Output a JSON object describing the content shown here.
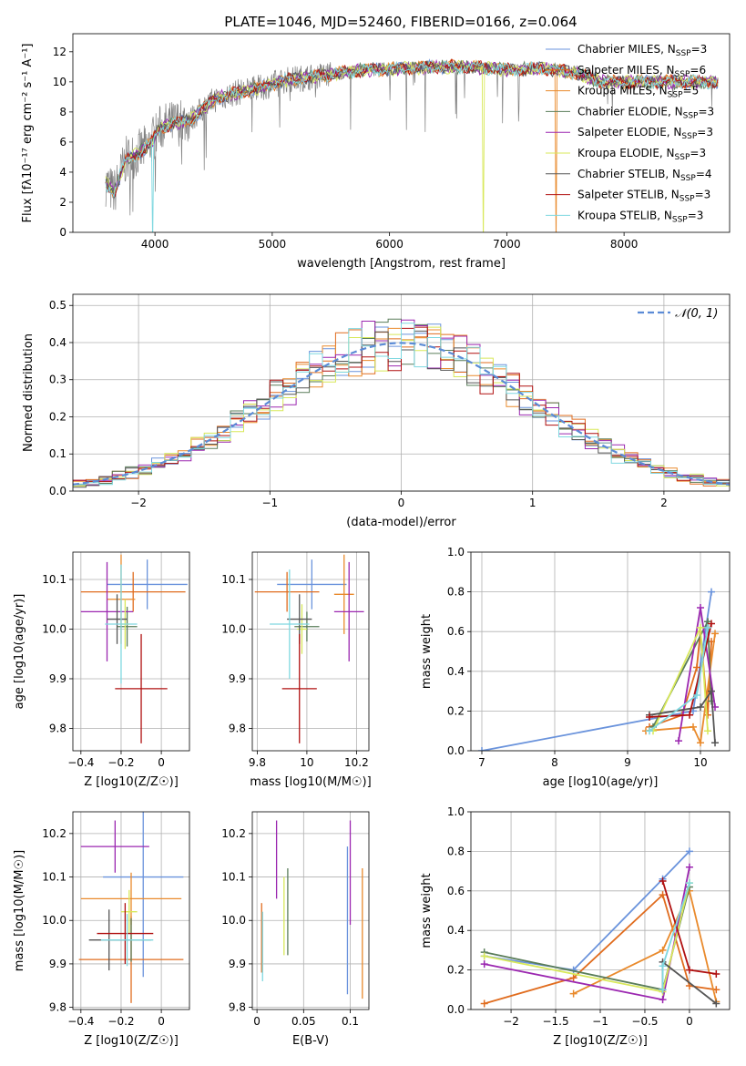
{
  "figure": {
    "title": "PLATE=1046, MJD=52460, FIBERID=0166, z=0.064"
  },
  "colors": {
    "Chabrier MILES": "#6a93dc",
    "Salpeter MILES": "#e06c1e",
    "Kroupa MILES": "#e98a2c",
    "Chabrier ELODIE": "#5a7d5a",
    "Salpeter ELODIE": "#9b27b0",
    "Kroupa ELODIE": "#d8e85a",
    "Chabrier STELIB": "#555555",
    "Salpeter STELIB": "#b01010",
    "Kroupa STELIB": "#7fd8e0",
    "data": "#808080",
    "normal": "#5b8bd6",
    "grid": "#b0b0b0"
  },
  "chart_data": [
    {
      "type": "line",
      "id": "spectrum",
      "title": "PLATE=1046, MJD=52460, FIBERID=0166, z=0.064",
      "xlabel": "wavelength [Angstrom, rest frame]",
      "ylabel": "Flux [fλ10⁻¹⁷ erg cm⁻² s⁻¹ A⁻¹]",
      "xlim": [
        3300,
        8900
      ],
      "ylim": [
        0,
        13.2
      ],
      "xticks": [
        4000,
        5000,
        6000,
        7000,
        8000
      ],
      "yticks": [
        0,
        2,
        4,
        6,
        8,
        10,
        12
      ],
      "grid": false,
      "legend_position": "right",
      "legend": [
        "Chabrier MILES, N_SSP=3",
        "Salpeter MILES, N_SSP=6",
        "Kroupa MILES, N_SSP=5",
        "Chabrier ELODIE, N_SSP=3",
        "Salpeter ELODIE, N_SSP=3",
        "Kroupa ELODIE, N_SSP=3",
        "Chabrier STELIB, N_SSP=4",
        "Salpeter STELIB, N_SSP=3",
        "Kroupa STELIB, N_SSP=3"
      ],
      "legend_labels": [
        {
          "name": "Chabrier MILES",
          "sub": "SSP",
          "n": "3"
        },
        {
          "name": "Salpeter MILES",
          "sub": "SSP",
          "n": "6"
        },
        {
          "name": "Kroupa MILES",
          "sub": "SSP",
          "n": "5"
        },
        {
          "name": "Chabrier ELODIE",
          "sub": "SSP",
          "n": "3"
        },
        {
          "name": "Salpeter ELODIE",
          "sub": "SSP",
          "n": "3"
        },
        {
          "name": "Kroupa ELODIE",
          "sub": "SSP",
          "n": "3"
        },
        {
          "name": "Chabrier STELIB",
          "sub": "SSP",
          "n": "4"
        },
        {
          "name": "Salpeter STELIB",
          "sub": "SSP",
          "n": "3"
        },
        {
          "name": "Kroupa STELIB",
          "sub": "SSP",
          "n": "3"
        }
      ],
      "continuum": {
        "x": [
          3580,
          3650,
          3750,
          3850,
          3950,
          4050,
          4150,
          4300,
          4500,
          4700,
          4900,
          5100,
          5300,
          5500,
          5800,
          6100,
          6400,
          6700,
          7000,
          7300,
          7600,
          7800
        ],
        "y": [
          3.3,
          2.6,
          4.8,
          5.2,
          5.8,
          7.0,
          7.2,
          7.5,
          8.8,
          9.3,
          9.6,
          10.1,
          10.3,
          10.5,
          10.8,
          10.9,
          11.0,
          11.0,
          10.8,
          10.9,
          10.6,
          10.0
        ]
      },
      "data_range": [
        3580,
        8800
      ],
      "model_drop_wavelength": {
        "Kroupa STELIB": 3980,
        "Kroupa MILES": 7420,
        "Kroupa ELODIE": 6800
      }
    },
    {
      "type": "histogram",
      "id": "residuals",
      "xlabel": "(data-model)/error",
      "ylabel": "Normed distribution",
      "xlim": [
        -2.5,
        2.5
      ],
      "ylim": [
        0,
        0.53
      ],
      "xticks": [
        -2,
        -1,
        0,
        1,
        2
      ],
      "yticks": [
        0.0,
        0.1,
        0.2,
        0.3,
        0.4,
        0.5
      ],
      "grid": true,
      "legend": [
        "𝒩(0, 1)"
      ],
      "legend_position": "top-right",
      "bin_width": 0.1,
      "reference_curve": {
        "name": "N(0,1)",
        "mean": 0.0,
        "sigma": 1.0
      }
    },
    {
      "type": "scatter",
      "id": "age_vs_Z",
      "xlabel": "Z [log10(Z/Z☉)]",
      "ylabel": "age  [log10(age/yr)]",
      "xlim": [
        -0.44,
        0.14
      ],
      "ylim": [
        9.755,
        10.155
      ],
      "xticks": [
        -0.4,
        -0.2,
        0.0
      ],
      "yticks": [
        9.8,
        9.9,
        10.0,
        10.1
      ],
      "grid": true,
      "points": [
        {
          "model": "Chabrier MILES",
          "x": -0.07,
          "y": 10.09,
          "xerr": 0.2,
          "yerr": 0.05
        },
        {
          "model": "Salpeter MILES",
          "x": -0.14,
          "y": 10.075,
          "xerr": 0.26,
          "yerr": 0.04
        },
        {
          "model": "Kroupa MILES",
          "x": -0.2,
          "y": 10.06,
          "xerr": 0.07,
          "yerr": 0.09
        },
        {
          "model": "Chabrier ELODIE",
          "x": -0.17,
          "y": 10.005,
          "xerr": 0.05,
          "yerr": 0.04
        },
        {
          "model": "Salpeter ELODIE",
          "x": -0.27,
          "y": 10.035,
          "xerr": 0.13,
          "yerr": 0.1
        },
        {
          "model": "Kroupa ELODIE",
          "x": -0.18,
          "y": 10.01,
          "xerr": 0.02,
          "yerr": 0.05
        },
        {
          "model": "Chabrier STELIB",
          "x": -0.22,
          "y": 10.02,
          "xerr": 0.05,
          "yerr": 0.05
        },
        {
          "model": "Salpeter STELIB",
          "x": -0.1,
          "y": 9.88,
          "xerr": 0.13,
          "yerr": 0.11
        },
        {
          "model": "Kroupa STELIB",
          "x": -0.2,
          "y": 10.01,
          "xerr": 0.08,
          "yerr": 0.12
        }
      ]
    },
    {
      "type": "scatter",
      "id": "age_vs_mass",
      "xlabel": "mass [log10(M/M☉)]",
      "ylabel": "",
      "xlim": [
        9.78,
        10.25
      ],
      "ylim": [
        9.755,
        10.155
      ],
      "xticks": [
        9.8,
        10.0,
        10.2
      ],
      "yticks": [
        9.8,
        9.9,
        10.0,
        10.1
      ],
      "grid": true,
      "points": [
        {
          "model": "Chabrier MILES",
          "x": 10.02,
          "y": 10.09,
          "xerr": 0.14,
          "yerr": 0.05
        },
        {
          "model": "Salpeter MILES",
          "x": 9.92,
          "y": 10.075,
          "xerr": 0.13,
          "yerr": 0.04
        },
        {
          "model": "Kroupa MILES",
          "x": 10.15,
          "y": 10.07,
          "xerr": 0.04,
          "yerr": 0.08
        },
        {
          "model": "Chabrier ELODIE",
          "x": 10.0,
          "y": 10.005,
          "xerr": 0.05,
          "yerr": 0.03
        },
        {
          "model": "Salpeter ELODIE",
          "x": 10.17,
          "y": 10.035,
          "xerr": 0.06,
          "yerr": 0.1
        },
        {
          "model": "Kroupa ELODIE",
          "x": 9.98,
          "y": 10.0,
          "xerr": 0.02,
          "yerr": 0.05
        },
        {
          "model": "Chabrier STELIB",
          "x": 9.97,
          "y": 10.02,
          "xerr": 0.05,
          "yerr": 0.05
        },
        {
          "model": "Salpeter STELIB",
          "x": 9.97,
          "y": 9.88,
          "xerr": 0.07,
          "yerr": 0.11
        },
        {
          "model": "Kroupa STELIB",
          "x": 9.93,
          "y": 10.01,
          "xerr": 0.08,
          "yerr": 0.11
        }
      ]
    },
    {
      "type": "line",
      "id": "weight_vs_age",
      "xlabel": "age  [log10(age/yr)]",
      "ylabel": "mass weight",
      "xlim": [
        6.85,
        10.4
      ],
      "ylim": [
        0,
        1.0
      ],
      "xticks": [
        7,
        8,
        9,
        10
      ],
      "yticks": [
        0.0,
        0.2,
        0.4,
        0.6,
        0.8,
        1.0
      ],
      "grid": true,
      "series": [
        {
          "model": "Chabrier MILES",
          "x": [
            7.0,
            9.9,
            10.15
          ],
          "y": [
            0.0,
            0.2,
            0.8
          ]
        },
        {
          "model": "Salpeter MILES",
          "x": [
            9.3,
            9.75,
            9.95,
            10.0,
            10.1,
            10.15
          ],
          "y": [
            0.12,
            0.18,
            0.42,
            0.6,
            0.18,
            0.55
          ]
        },
        {
          "model": "Kroupa MILES",
          "x": [
            9.25,
            9.9,
            10.0,
            10.2
          ],
          "y": [
            0.1,
            0.12,
            0.04,
            0.59
          ]
        },
        {
          "model": "Chabrier ELODIE",
          "x": [
            9.35,
            10.1,
            10.15
          ],
          "y": [
            0.12,
            0.65,
            0.25
          ]
        },
        {
          "model": "Salpeter ELODIE",
          "x": [
            9.7,
            10.0,
            10.2
          ],
          "y": [
            0.05,
            0.72,
            0.22
          ]
        },
        {
          "model": "Kroupa ELODIE",
          "x": [
            9.35,
            10.0,
            10.1
          ],
          "y": [
            0.1,
            0.62,
            0.1
          ]
        },
        {
          "model": "Chabrier STELIB",
          "x": [
            9.3,
            10.0,
            10.15,
            10.2
          ],
          "y": [
            0.18,
            0.22,
            0.3,
            0.04
          ]
        },
        {
          "model": "Salpeter STELIB",
          "x": [
            9.3,
            9.85,
            10.15
          ],
          "y": [
            0.17,
            0.18,
            0.64
          ]
        },
        {
          "model": "Kroupa STELIB",
          "x": [
            9.3,
            9.95,
            10.1
          ],
          "y": [
            0.1,
            0.28,
            0.62
          ]
        }
      ]
    },
    {
      "type": "scatter",
      "id": "mass_vs_Z",
      "xlabel": "Z [log10(Z/Z☉)]",
      "ylabel": "mass [log10(M/M☉)]",
      "xlim": [
        -0.44,
        0.14
      ],
      "ylim": [
        9.795,
        10.25
      ],
      "xticks": [
        -0.4,
        -0.2,
        0.0
      ],
      "yticks": [
        9.8,
        9.9,
        10.0,
        10.1,
        10.2
      ],
      "grid": true,
      "points": [
        {
          "model": "Chabrier MILES",
          "x": -0.09,
          "y": 10.1,
          "xerr": 0.2,
          "yerr": 0.23
        },
        {
          "model": "Salpeter MILES",
          "x": -0.15,
          "y": 9.91,
          "xerr": 0.26,
          "yerr": 0.1
        },
        {
          "model": "Kroupa MILES",
          "x": -0.15,
          "y": 10.05,
          "xerr": 0.25,
          "yerr": 0.06
        },
        {
          "model": "Chabrier ELODIE",
          "x": -0.15,
          "y": 9.955,
          "xerr": 0.1,
          "yerr": 0.05
        },
        {
          "model": "Salpeter ELODIE",
          "x": -0.23,
          "y": 10.17,
          "xerr": 0.17,
          "yerr": 0.06
        },
        {
          "model": "Kroupa ELODIE",
          "x": -0.16,
          "y": 10.02,
          "xerr": 0.04,
          "yerr": 0.05
        },
        {
          "model": "Chabrier STELIB",
          "x": -0.26,
          "y": 9.955,
          "xerr": 0.1,
          "yerr": 0.07
        },
        {
          "model": "Salpeter STELIB",
          "x": -0.18,
          "y": 9.97,
          "xerr": 0.14,
          "yerr": 0.07
        },
        {
          "model": "Kroupa STELIB",
          "x": -0.17,
          "y": 9.955,
          "xerr": 0.13,
          "yerr": 0.06
        }
      ]
    },
    {
      "type": "scatter",
      "id": "mass_vs_ebv",
      "xlabel": "E(B-V)",
      "ylabel": "",
      "xlim": [
        -0.005,
        0.12
      ],
      "ylim": [
        9.795,
        10.25
      ],
      "xticks": [
        0.0,
        0.05,
        0.1
      ],
      "yticks": [
        9.8,
        9.9,
        10.0,
        10.1,
        10.2
      ],
      "grid": true,
      "points": [
        {
          "model": "Salpeter MILES",
          "x": 0.005,
          "y": 9.96,
          "xerr": 0.0,
          "yerr": 0.08
        },
        {
          "model": "Kroupa STELIB",
          "x": 0.006,
          "y": 9.94,
          "xerr": 0.0,
          "yerr": 0.08
        },
        {
          "model": "Salpeter ELODIE",
          "x": 0.021,
          "y": 10.14,
          "xerr": 0.0,
          "yerr": 0.09
        },
        {
          "model": "Kroupa ELODIE",
          "x": 0.029,
          "y": 10.01,
          "xerr": 0.0,
          "yerr": 0.09
        },
        {
          "model": "Chabrier ELODIE",
          "x": 0.033,
          "y": 10.02,
          "xerr": 0.0,
          "yerr": 0.1
        },
        {
          "model": "Chabrier MILES",
          "x": 0.097,
          "y": 10.0,
          "xerr": 0.0,
          "yerr": 0.17
        },
        {
          "model": "Salpeter ELODIE",
          "x": 0.1,
          "y": 10.11,
          "xerr": 0.0,
          "yerr": 0.12
        },
        {
          "model": "Kroupa MILES",
          "x": 0.113,
          "y": 9.97,
          "xerr": 0.0,
          "yerr": 0.15
        }
      ]
    },
    {
      "type": "line",
      "id": "weight_vs_Z",
      "xlabel": "Z [log10(Z/Z☉)]",
      "ylabel": "mass weight",
      "xlim": [
        -2.45,
        0.45
      ],
      "ylim": [
        0,
        1.0
      ],
      "xticks": [
        -2.0,
        -1.5,
        -1.0,
        -0.5,
        0.0
      ],
      "yticks": [
        0.0,
        0.2,
        0.4,
        0.6,
        0.8,
        1.0
      ],
      "grid": true,
      "series": [
        {
          "model": "Chabrier MILES",
          "x": [
            -2.3,
            -1.3,
            -0.3,
            0.0
          ],
          "y": [
            0.27,
            0.2,
            0.66,
            0.8
          ]
        },
        {
          "model": "Salpeter MILES",
          "x": [
            -2.3,
            -1.3,
            -0.3,
            0.0,
            0.3
          ],
          "y": [
            0.03,
            0.16,
            0.58,
            0.12,
            0.1
          ]
        },
        {
          "model": "Kroupa MILES",
          "x": [
            -1.3,
            -0.3,
            0.0,
            0.3
          ],
          "y": [
            0.08,
            0.3,
            0.6,
            0.04
          ]
        },
        {
          "model": "Chabrier ELODIE",
          "x": [
            -2.3,
            -0.3,
            0.0
          ],
          "y": [
            0.29,
            0.1,
            0.62
          ]
        },
        {
          "model": "Salpeter ELODIE",
          "x": [
            -2.3,
            -0.3,
            0.0
          ],
          "y": [
            0.23,
            0.05,
            0.72
          ]
        },
        {
          "model": "Kroupa ELODIE",
          "x": [
            -2.3,
            -0.3,
            0.0
          ],
          "y": [
            0.27,
            0.09,
            0.64
          ]
        },
        {
          "model": "Chabrier STELIB",
          "x": [
            -0.3,
            -0.3,
            0.3
          ],
          "y": [
            0.1,
            0.24,
            0.03
          ]
        },
        {
          "model": "Salpeter STELIB",
          "x": [
            -0.3,
            0.0,
            0.3
          ],
          "y": [
            0.65,
            0.2,
            0.18
          ]
        },
        {
          "model": "Kroupa STELIB",
          "x": [
            -0.3,
            -0.3,
            0.0
          ],
          "y": [
            0.1,
            0.22,
            0.64
          ]
        }
      ]
    }
  ]
}
